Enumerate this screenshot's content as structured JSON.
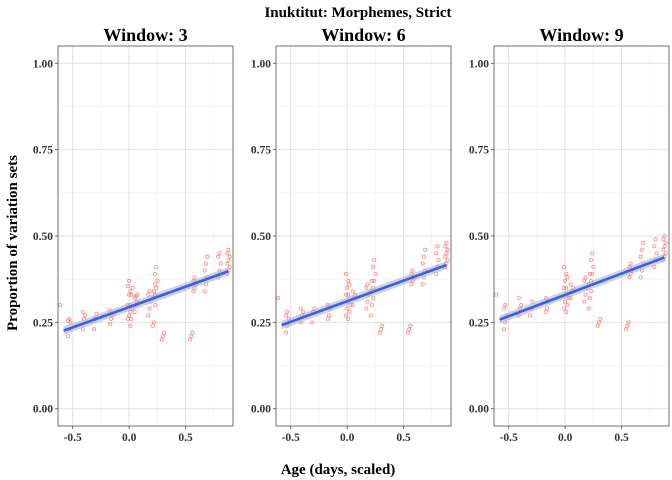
{
  "chart_data": {
    "type": "scatter",
    "title": "Inuktitut: Morphemes, Strict",
    "xlabel": "Age (days, scaled)",
    "ylabel": "Proportion of variation sets",
    "xlim": [
      -0.63,
      0.92
    ],
    "ylim": [
      -0.05,
      1.05
    ],
    "x_ticks": [
      -0.5,
      0.0,
      0.5
    ],
    "x_tick_labels": [
      "-0.5",
      "0.0",
      "0.5"
    ],
    "y_ticks": [
      0.0,
      0.25,
      0.5,
      0.75,
      1.0
    ],
    "y_tick_labels": [
      "0.00",
      "0.25",
      "0.50",
      "0.75",
      "1.00"
    ],
    "grid": true,
    "point_color": "#f8766d",
    "line_color": "#3a5ff0",
    "band_color": "#a9aebf",
    "panels": [
      {
        "title": "Window: 3",
        "fit": {
          "x": [
            -0.58,
            0.88
          ],
          "y": [
            0.226,
            0.398
          ],
          "se": 0.01
        },
        "clusters": [
          {
            "x": -0.6,
            "y": [
              0.3
            ]
          },
          {
            "x": -0.53,
            "y": [
              0.21,
              0.23,
              0.25,
              0.255,
              0.26
            ]
          },
          {
            "x": -0.4,
            "y": [
              0.23,
              0.26,
              0.27,
              0.28
            ]
          },
          {
            "x": -0.3,
            "y": [
              0.23,
              0.26,
              0.275
            ]
          },
          {
            "x": -0.16,
            "y": [
              0.245,
              0.26,
              0.27,
              0.285
            ]
          },
          {
            "x": 0.0,
            "y": [
              0.26,
              0.27,
              0.28,
              0.3,
              0.33,
              0.34,
              0.355,
              0.37
            ]
          },
          {
            "x": 0.02,
            "y": [
              0.24,
              0.26,
              0.29,
              0.3,
              0.33,
              0.35
            ]
          },
          {
            "x": 0.06,
            "y": [
              0.28,
              0.3,
              0.31,
              0.32,
              0.325,
              0.33
            ]
          },
          {
            "x": 0.18,
            "y": [
              0.27,
              0.29,
              0.31,
              0.33,
              0.34
            ]
          },
          {
            "x": 0.22,
            "y": [
              0.24,
              0.25,
              0.3,
              0.32,
              0.34,
              0.36
            ]
          },
          {
            "x": 0.24,
            "y": [
              0.33,
              0.35,
              0.37,
              0.39,
              0.41
            ]
          },
          {
            "x": 0.3,
            "y": [
              0.2,
              0.21,
              0.22
            ]
          },
          {
            "x": 0.55,
            "y": [
              0.2,
              0.21,
              0.22
            ]
          },
          {
            "x": 0.58,
            "y": [
              0.34,
              0.35,
              0.36,
              0.37,
              0.38
            ]
          },
          {
            "x": 0.68,
            "y": [
              0.34,
              0.36,
              0.38,
              0.4,
              0.42,
              0.44
            ]
          },
          {
            "x": 0.8,
            "y": [
              0.38,
              0.4,
              0.42,
              0.44,
              0.45
            ]
          },
          {
            "x": 0.88,
            "y": [
              0.39,
              0.4,
              0.41,
              0.42,
              0.43,
              0.44,
              0.45,
              0.46
            ]
          }
        ]
      },
      {
        "title": "Window: 6",
        "fit": {
          "x": [
            -0.58,
            0.88
          ],
          "y": [
            0.242,
            0.416
          ],
          "se": 0.01
        },
        "clusters": [
          {
            "x": -0.6,
            "y": [
              0.32
            ]
          },
          {
            "x": -0.53,
            "y": [
              0.22,
              0.24,
              0.26,
              0.27,
              0.28
            ]
          },
          {
            "x": -0.4,
            "y": [
              0.25,
              0.27,
              0.28,
              0.29
            ]
          },
          {
            "x": -0.3,
            "y": [
              0.25,
              0.28,
              0.29
            ]
          },
          {
            "x": -0.16,
            "y": [
              0.26,
              0.27,
              0.29,
              0.3
            ]
          },
          {
            "x": 0.0,
            "y": [
              0.27,
              0.29,
              0.31,
              0.33,
              0.35,
              0.37,
              0.39
            ]
          },
          {
            "x": 0.02,
            "y": [
              0.26,
              0.28,
              0.3,
              0.33,
              0.36
            ]
          },
          {
            "x": 0.06,
            "y": [
              0.3,
              0.32,
              0.33,
              0.34
            ]
          },
          {
            "x": 0.18,
            "y": [
              0.29,
              0.31,
              0.33,
              0.35,
              0.36
            ]
          },
          {
            "x": 0.22,
            "y": [
              0.27,
              0.3,
              0.32,
              0.34,
              0.37
            ]
          },
          {
            "x": 0.24,
            "y": [
              0.35,
              0.37,
              0.39,
              0.41,
              0.43
            ]
          },
          {
            "x": 0.3,
            "y": [
              0.22,
              0.23,
              0.24
            ]
          },
          {
            "x": 0.55,
            "y": [
              0.22,
              0.23,
              0.24
            ]
          },
          {
            "x": 0.58,
            "y": [
              0.36,
              0.37,
              0.38,
              0.39,
              0.4
            ]
          },
          {
            "x": 0.68,
            "y": [
              0.36,
              0.38,
              0.4,
              0.42,
              0.44,
              0.46
            ]
          },
          {
            "x": 0.8,
            "y": [
              0.39,
              0.41,
              0.43,
              0.45,
              0.47
            ]
          },
          {
            "x": 0.88,
            "y": [
              0.41,
              0.42,
              0.43,
              0.44,
              0.45,
              0.46,
              0.47,
              0.48
            ]
          }
        ]
      },
      {
        "title": "Window: 9",
        "fit": {
          "x": [
            -0.58,
            0.88
          ],
          "y": [
            0.258,
            0.438
          ],
          "se": 0.01
        },
        "clusters": [
          {
            "x": -0.6,
            "y": [
              0.33
            ]
          },
          {
            "x": -0.53,
            "y": [
              0.23,
              0.25,
              0.27,
              0.29,
              0.3
            ]
          },
          {
            "x": -0.4,
            "y": [
              0.27,
              0.29,
              0.3,
              0.32
            ]
          },
          {
            "x": -0.3,
            "y": [
              0.27,
              0.29,
              0.31
            ]
          },
          {
            "x": -0.16,
            "y": [
              0.28,
              0.29,
              0.31,
              0.32
            ]
          },
          {
            "x": 0.0,
            "y": [
              0.29,
              0.31,
              0.33,
              0.35,
              0.37,
              0.39,
              0.41
            ]
          },
          {
            "x": 0.02,
            "y": [
              0.28,
              0.3,
              0.32,
              0.35,
              0.38
            ]
          },
          {
            "x": 0.06,
            "y": [
              0.32,
              0.34,
              0.35,
              0.36
            ]
          },
          {
            "x": 0.18,
            "y": [
              0.31,
              0.33,
              0.35,
              0.37,
              0.38
            ]
          },
          {
            "x": 0.22,
            "y": [
              0.29,
              0.32,
              0.34,
              0.36,
              0.39
            ]
          },
          {
            "x": 0.24,
            "y": [
              0.37,
              0.39,
              0.41,
              0.43,
              0.45
            ]
          },
          {
            "x": 0.3,
            "y": [
              0.24,
              0.25,
              0.26
            ]
          },
          {
            "x": 0.55,
            "y": [
              0.23,
              0.24,
              0.25
            ]
          },
          {
            "x": 0.58,
            "y": [
              0.38,
              0.39,
              0.4,
              0.41,
              0.42
            ]
          },
          {
            "x": 0.68,
            "y": [
              0.38,
              0.4,
              0.42,
              0.44,
              0.46,
              0.48
            ]
          },
          {
            "x": 0.8,
            "y": [
              0.41,
              0.43,
              0.45,
              0.47,
              0.49
            ]
          },
          {
            "x": 0.88,
            "y": [
              0.43,
              0.44,
              0.45,
              0.46,
              0.47,
              0.48,
              0.49,
              0.5
            ]
          }
        ]
      }
    ]
  }
}
